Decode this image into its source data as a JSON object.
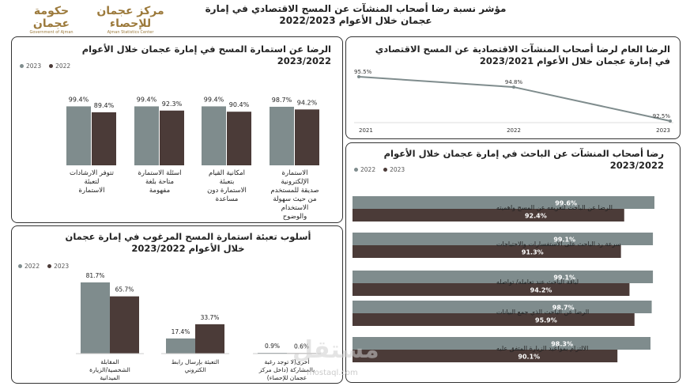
{
  "header": {
    "title": "مؤشر نسبة رضا أصحاب المنشآت عن المسح الاقتصادي في إمارة عجمان خلال الأعوام 2022/2023",
    "logo_ajman_ar": "حكومة عجمان",
    "logo_ajman_en": "Government of Ajman",
    "logo_stats_ar": "مركز عجمان للإحصاء",
    "logo_stats_en": "Ajman Statistics Center"
  },
  "colors": {
    "c2022": "#7f8c8d",
    "c2023": "#4b3b38",
    "line": "#7f8c8d"
  },
  "watermark": {
    "text": "مستقل",
    "url": "mostaql.com"
  },
  "chart_data": [
    {
      "id": "survey_form",
      "type": "bar",
      "title": "الرضا عن استمارة المسح في إمارة عجمان خلال الأعوام 2023/2022",
      "legend": [
        "2023",
        "2022"
      ],
      "categories": [
        "الاستمارة الإلكترونية صديقة للمستخدم من حيث سهولة الاستخدام والوضوح",
        "امكانية القيام بتعبئة الاستمارة دون مساعدة",
        "اسئلة الاستمارة متاحة بلغة مفهومة",
        "تتوفر الارشادات لتعبئة الاستمارة"
      ],
      "series": [
        {
          "name": "2022",
          "values": [
            98.7,
            99.4,
            99.4,
            99.4
          ],
          "labels": [
            "98.7%",
            "99.4%",
            "99.4%",
            "99.4%"
          ]
        },
        {
          "name": "2023",
          "values": [
            94.2,
            90.4,
            92.3,
            89.4
          ],
          "labels": [
            "94.2%",
            "90.4%",
            "92.3%",
            "89.4%"
          ]
        }
      ]
    },
    {
      "id": "overall",
      "type": "line",
      "title": "الرضا العام لرضا أصحاب المنشآت الاقتصادية عن المسح الاقتصادي في إمارة عجمان خلال الأعوام 2023/2021",
      "x": [
        "2021",
        "2022",
        "2023"
      ],
      "values": [
        95.5,
        94.8,
        92.5
      ],
      "labels": [
        "95.5%",
        "94.8%",
        "92.5%"
      ]
    },
    {
      "id": "researcher",
      "type": "bar",
      "orientation": "horizontal",
      "title": "رضا أصحاب المنشآت عن الباحث في إمارة عجمان خلال الأعوام 2023/2022",
      "legend": [
        "2022",
        "2023"
      ],
      "categories": [
        "الرضا عن الباحث لتعريفه عن المسح واهميته",
        "سرعة رد الباحث على الاستفسارات والاحتياجات",
        "لباقة الباحث عند تعامله/ تواصله",
        "الرضا عن الباحث الذي جمع البيانات",
        "الالتزام بمواعيد الزيارة المتفق عليه"
      ],
      "series": [
        {
          "name": "2022",
          "values": [
            99.6,
            99.1,
            99.1,
            98.7,
            98.3
          ],
          "labels": [
            "99.6%",
            "99.1%",
            "99.1%",
            "98.7%",
            "98.3%"
          ]
        },
        {
          "name": "2023",
          "values": [
            92.4,
            91.3,
            94.2,
            95.9,
            90.1
          ],
          "labels": [
            "92.4%",
            "91.3%",
            "94.2%",
            "95.9%",
            "90.1%"
          ]
        }
      ]
    },
    {
      "id": "fill_method",
      "type": "bar",
      "title": "أسلوب تعبئة استمارة المسح المرغوب في إمارة عجمان خلال الأعوام 2023/2022",
      "legend": [
        "2022",
        "2023"
      ],
      "categories": [
        "المقابلة الشخصية/الزيارة الميدانية",
        "التعبئة بإرسال رابط الكتروني",
        "أخرى(لا توجد رغبة بالمشاركة (داخل مركز عجمان للإحصاء)"
      ],
      "series": [
        {
          "name": "2022",
          "values": [
            81.7,
            17.4,
            0.9
          ],
          "labels": [
            "81.7%",
            "17.4%",
            "0.9%"
          ]
        },
        {
          "name": "2023",
          "values": [
            65.7,
            33.7,
            0.6
          ],
          "labels": [
            "65.7%",
            "33.7%",
            "0.6%"
          ]
        }
      ]
    }
  ]
}
